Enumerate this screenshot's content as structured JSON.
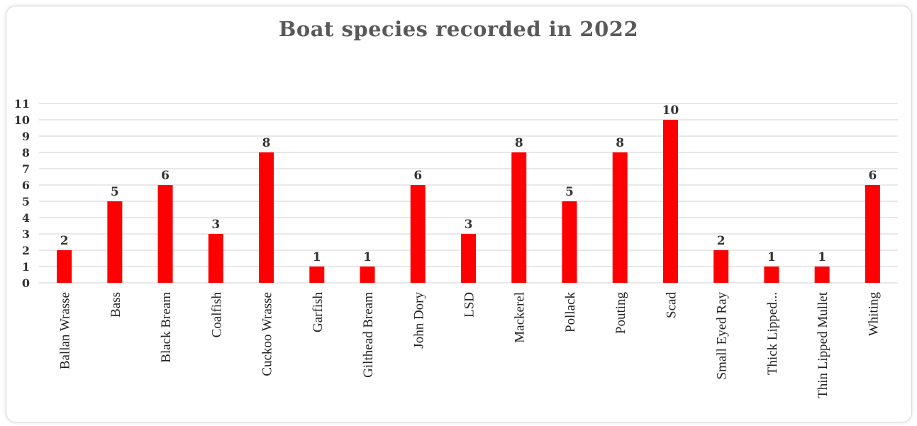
{
  "chart_data": {
    "type": "bar",
    "title": "Boat species recorded in 2022",
    "xlabel": "",
    "ylabel": "",
    "categories": [
      "Ballan Wrasse",
      "Bass",
      "Black Bream",
      "Coalfish",
      "Cuckoo Wrasse",
      "Garfish",
      "Gilthead Bream",
      "John Dory",
      "LSD",
      "Mackerel",
      "Pollack",
      "Pouting",
      "Scad",
      "Small Eyed Ray",
      "Thick Lipped...",
      "Thin Lipped Mullet",
      "Whiting"
    ],
    "values": [
      2,
      5,
      6,
      3,
      8,
      1,
      1,
      6,
      3,
      8,
      5,
      8,
      10,
      2,
      1,
      1,
      6
    ],
    "ylim": [
      0,
      11
    ],
    "yticks": [
      0,
      1,
      2,
      3,
      4,
      5,
      6,
      7,
      8,
      9,
      10,
      11
    ],
    "grid": true,
    "data_labels": true,
    "bar_color": "#ff0000",
    "grid_color": "#d0d0d0"
  }
}
